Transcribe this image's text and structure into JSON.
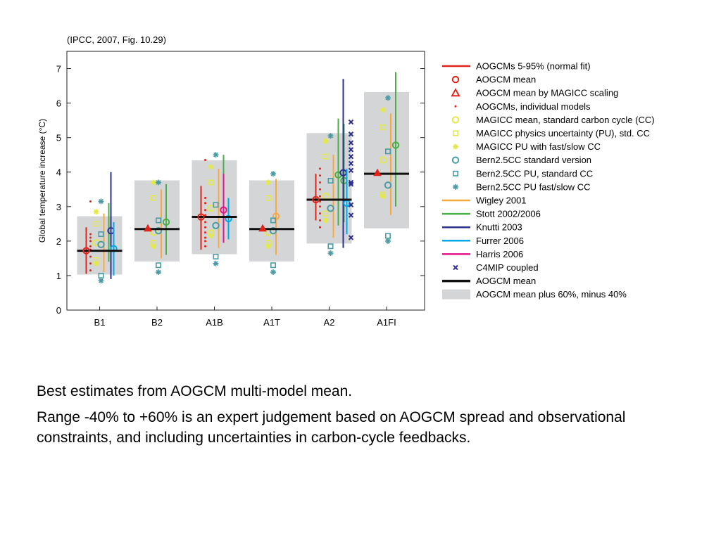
{
  "captions": [
    "Best estimates from AOGCM multi-model mean.",
    "Range -40% to +60% is an expert judgement based on AOGCM spread and observational constraints, and including uncertainties in carbon-cycle feedbacks."
  ],
  "chart_data": {
    "type": "scatter",
    "title": "(IPCC, 2007, Fig. 10.29)",
    "xlabel": "",
    "ylabel": "Global temperature increase (°C)",
    "categories": [
      "B1",
      "B2",
      "A1B",
      "A1T",
      "A2",
      "A1FI"
    ],
    "ylim": [
      0,
      7.5
    ],
    "yticks": [
      0,
      1,
      2,
      3,
      4,
      5,
      6,
      7
    ],
    "grid": false,
    "legend_position": "right",
    "colors": {
      "aogcm_red": "#e2231a",
      "magicc_yellow": "#e3e84a",
      "bern_teal": "#4a9ba4",
      "wigley_orange": "#f7a940",
      "stott_green": "#4aaf48",
      "knutti_navy": "#2e3192",
      "furrer_blue": "#00a8e8",
      "harris_magenta": "#e5148a",
      "c4mip_navy": "#2e3192",
      "mean_black": "#111111",
      "box_gray": "#d4d5d7"
    },
    "legend": [
      {
        "label": "AOGCMs 5-95% (normal fit)",
        "marker": "line",
        "color": "#e2231a"
      },
      {
        "label": "AOGCM mean",
        "marker": "circle",
        "color": "#e2231a"
      },
      {
        "label": "AOGCM mean by MAGICC scaling",
        "marker": "triangle",
        "color": "#e2231a"
      },
      {
        "label": "AOGCMs, individual models",
        "marker": "dot",
        "color": "#e2231a"
      },
      {
        "label": "MAGICC mean, standard carbon cycle (CC)",
        "marker": "circle",
        "color": "#e3e84a"
      },
      {
        "label": "MAGICC physics uncertainty (PU), std. CC",
        "marker": "square",
        "color": "#e3e84a"
      },
      {
        "label": "MAGICC PU with fast/slow CC",
        "marker": "star",
        "color": "#e3e84a"
      },
      {
        "label": "Bern2.5CC standard version",
        "marker": "circle",
        "color": "#4a9ba4"
      },
      {
        "label": "Bern2.5CC PU, standard CC",
        "marker": "square",
        "color": "#4a9ba4"
      },
      {
        "label": "Bern2.5CC PU fast/slow CC",
        "marker": "star",
        "color": "#4a9ba4"
      },
      {
        "label": "Wigley 2001",
        "marker": "line",
        "color": "#f7a940"
      },
      {
        "label": "Stott 2002/2006",
        "marker": "line",
        "color": "#4aaf48"
      },
      {
        "label": "Knutti 2003",
        "marker": "line",
        "color": "#2e3192"
      },
      {
        "label": "Furrer 2006",
        "marker": "line",
        "color": "#00a8e8"
      },
      {
        "label": "Harris 2006",
        "marker": "line",
        "color": "#e5148a"
      },
      {
        "label": "C4MIP coupled",
        "marker": "cross",
        "color": "#2e3192"
      },
      {
        "label": "AOGCM mean",
        "marker": "thickline",
        "color": "#111111"
      },
      {
        "label": "AOGCM mean plus 60%, minus 40%",
        "marker": "box",
        "color": "#d4d5d7"
      }
    ],
    "scenarios": [
      {
        "name": "B1",
        "aogcm_mean": 1.72,
        "range_box": [
          1.03,
          2.72
        ],
        "aogcm_5_95": [
          1.05,
          2.4
        ],
        "aogcm_mean_circle": 1.72,
        "magicc_scaling_triangle": null,
        "aogcm_individual": [
          1.15,
          1.35,
          1.55,
          1.75,
          1.85,
          2.0,
          2.1,
          2.2,
          3.15
        ],
        "magicc_mean": 1.95,
        "magicc_pu_std": [
          1.45,
          2.5
        ],
        "magicc_pu_fastslow": [
          1.35,
          2.85
        ],
        "bern_standard": 1.9,
        "bern_pu_std": [
          1.0,
          2.2
        ],
        "bern_pu_fastslow": [
          0.85,
          3.15
        ],
        "wigley": [
          1.1,
          2.8
        ],
        "stott": [
          1.4,
          3.1
        ],
        "knutti": [
          0.9,
          4.0,
          2.3
        ],
        "furrer": [
          1.0,
          2.55,
          1.78
        ],
        "harris": null,
        "c4mip": []
      },
      {
        "name": "B2",
        "aogcm_mean": 2.35,
        "range_box": [
          1.41,
          3.76
        ],
        "aogcm_5_95": null,
        "aogcm_mean_circle": null,
        "magicc_scaling_triangle": 2.37,
        "aogcm_individual": [],
        "magicc_mean": 2.25,
        "magicc_pu_std": [
          1.95,
          3.25
        ],
        "magicc_pu_fastslow": [
          1.85,
          3.7
        ],
        "bern_standard": 2.3,
        "bern_pu_std": [
          1.3,
          2.6
        ],
        "bern_pu_fastslow": [
          1.1,
          3.7
        ],
        "wigley": [
          1.5,
          3.5
        ],
        "stott": [
          1.6,
          3.65,
          2.55
        ],
        "knutti": null,
        "furrer": null,
        "harris": null,
        "c4mip": []
      },
      {
        "name": "A1B",
        "aogcm_mean": 2.7,
        "range_box": [
          1.62,
          4.34
        ],
        "aogcm_5_95": [
          1.75,
          3.6
        ],
        "aogcm_mean_circle": 2.7,
        "magicc_scaling_triangle": null,
        "aogcm_individual": [
          1.85,
          2.0,
          2.1,
          2.25,
          2.4,
          2.55,
          2.75,
          2.9,
          3.1,
          3.25,
          4.35
        ],
        "magicc_mean": 2.95,
        "magicc_pu_std": [
          2.25,
          3.7
        ],
        "magicc_pu_fastslow": [
          2.15,
          4.15
        ],
        "bern_standard": 2.45,
        "bern_pu_std": [
          1.55,
          3.05
        ],
        "bern_pu_fastslow": [
          1.35,
          4.5
        ],
        "wigley": [
          1.8,
          4.1
        ],
        "stott": [
          2.0,
          4.5
        ],
        "knutti": null,
        "furrer": [
          2.05,
          3.25,
          2.65
        ],
        "harris": [
          1.95,
          3.95,
          2.9
        ],
        "c4mip": []
      },
      {
        "name": "A1T",
        "aogcm_mean": 2.35,
        "range_box": [
          1.41,
          3.76
        ],
        "aogcm_5_95": null,
        "aogcm_mean_circle": null,
        "magicc_scaling_triangle": 2.37,
        "aogcm_individual": [],
        "magicc_mean": 2.25,
        "magicc_pu_std": [
          1.95,
          3.25
        ],
        "magicc_pu_fastslow": [
          1.85,
          3.7
        ],
        "bern_standard": 2.3,
        "bern_pu_std": [
          1.3,
          2.6
        ],
        "bern_pu_fastslow": [
          1.1,
          3.95
        ],
        "wigley": [
          1.6,
          3.8,
          2.72
        ],
        "stott": null,
        "knutti": null,
        "furrer": null,
        "harris": null,
        "c4mip": []
      },
      {
        "name": "A2",
        "aogcm_mean": 3.2,
        "range_box": [
          1.93,
          5.13
        ],
        "aogcm_5_95": [
          2.6,
          3.95
        ],
        "aogcm_mean_circle": 3.2,
        "magicc_scaling_triangle": null,
        "aogcm_individual": [
          2.4,
          2.6,
          2.8,
          3.0,
          3.15,
          3.3,
          3.5,
          3.7,
          3.9,
          4.1
        ],
        "magicc_mean": 3.3,
        "magicc_pu_std": [
          2.8,
          4.45
        ],
        "magicc_pu_fastslow": [
          2.6,
          4.9
        ],
        "bern_standard": 2.95,
        "bern_pu_std": [
          1.85,
          3.75
        ],
        "bern_pu_fastslow": [
          1.65,
          5.05
        ],
        "wigley": [
          2.1,
          4.5
        ],
        "stott": [
          2.45,
          5.55,
          3.92
        ],
        "knutti": [
          1.8,
          6.7,
          3.98
        ],
        "furrer": [
          2.2,
          4.1,
          3.1
        ],
        "harris": null,
        "c4mip": [
          2.1,
          2.75,
          3.05,
          3.65,
          3.7,
          4.05,
          4.25,
          4.45,
          4.65,
          4.85,
          5.1,
          5.45
        ],
        "stott_secondary": [
          2.55,
          5.4,
          3.75
        ]
      },
      {
        "name": "A1FI",
        "aogcm_mean": 3.95,
        "range_box": [
          2.37,
          6.32
        ],
        "aogcm_5_95": null,
        "aogcm_mean_circle": null,
        "magicc_scaling_triangle": 3.98,
        "aogcm_individual": [],
        "magicc_mean": 4.35,
        "magicc_pu_std": [
          3.35,
          5.3
        ],
        "magicc_pu_fastslow": [
          3.3,
          5.8
        ],
        "bern_standard": 3.62,
        "bern_pu_std": [
          2.15,
          4.6
        ],
        "bern_pu_fastslow": [
          2.0,
          6.15
        ],
        "wigley": [
          2.75,
          5.7
        ],
        "stott": [
          3.0,
          6.9,
          4.78
        ],
        "knutti": null,
        "furrer": null,
        "harris": null,
        "c4mip": []
      }
    ]
  }
}
